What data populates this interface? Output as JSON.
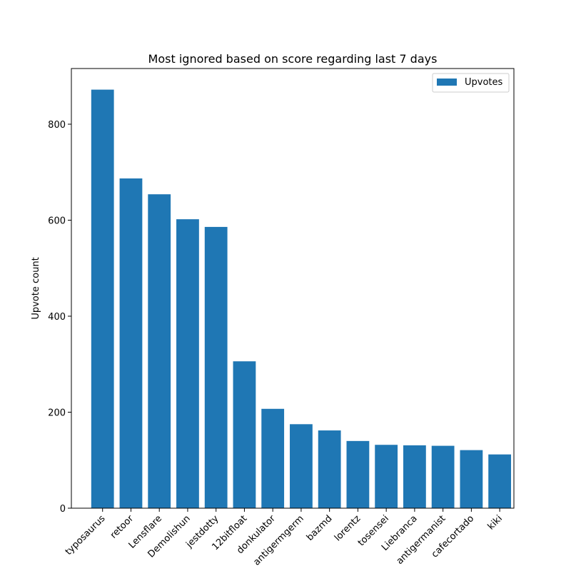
{
  "chart_data": {
    "type": "bar",
    "title": "Most ignored based on score regarding last 7 days",
    "xlabel": "",
    "ylabel": "Upvote count",
    "categories": [
      "typosaurus",
      "retoor",
      "Lensflare",
      "Demolishun",
      "jestdotty",
      "12bitfloat",
      "donkulator",
      "antigermgerm",
      "bazmd",
      "lorentz",
      "tosensei",
      "Liebranca",
      "antigermanist",
      "cafecortado",
      "kiki"
    ],
    "series": [
      {
        "name": "Upvotes",
        "values": [
          872,
          687,
          654,
          602,
          586,
          306,
          207,
          175,
          162,
          140,
          132,
          131,
          130,
          121,
          112
        ]
      }
    ],
    "ylim": [
      0,
      916
    ],
    "yticks": [
      0,
      200,
      400,
      600,
      800
    ],
    "bar_color": "#1f77b4",
    "legend_position": "top-right",
    "grid": false
  }
}
